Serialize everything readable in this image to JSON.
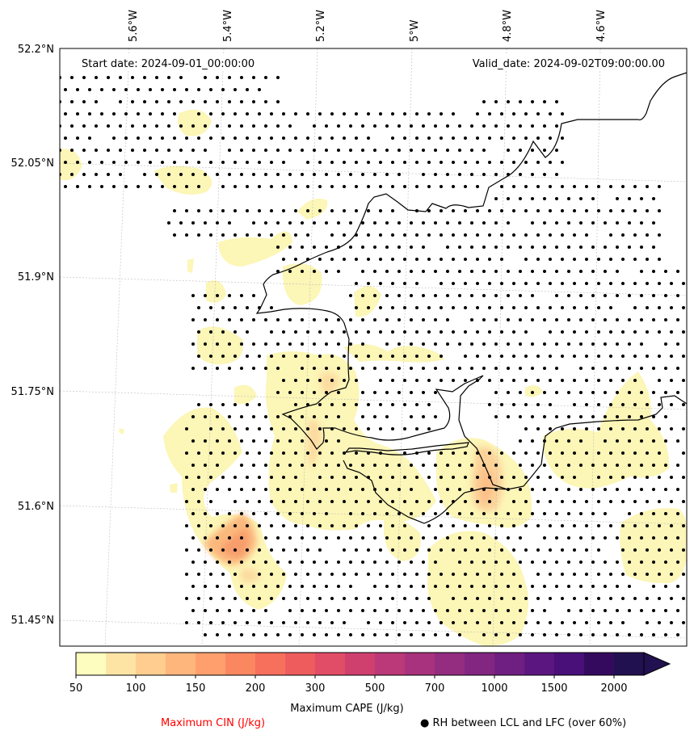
{
  "map": {
    "start_date": "Start date: 2024-09-01_00:00:00",
    "valid_date": "Valid_date: 2024-09-02T09:00:00.00",
    "lon_labels": [
      "5.6°W",
      "5.4°W",
      "5.2°W",
      "5°W",
      "4.8°W",
      "4.6°W"
    ],
    "lat_labels": [
      "52.2°N",
      "52.05°N",
      "51.9°N",
      "51.75°N",
      "51.6°N",
      "51.45°N"
    ],
    "gridlines": true
  },
  "colorbar": {
    "title": "Maximum CAPE (J/kg)",
    "tick_labels": [
      "50",
      "100",
      "150",
      "200",
      "300",
      "500",
      "700",
      "1000",
      "1500",
      "2000"
    ],
    "levels": [
      50,
      75,
      100,
      125,
      150,
      175,
      200,
      250,
      300,
      400,
      500,
      600,
      700,
      850,
      1000,
      1250,
      1500,
      1750,
      2000
    ],
    "colors": [
      "#fcfdbf",
      "#fde4a5",
      "#fecd8f",
      "#feb67c",
      "#fe9f6d",
      "#fb8761",
      "#f7705c",
      "#ee5c5e",
      "#e14d66",
      "#cf406f",
      "#bb3978",
      "#a8327d",
      "#942c80",
      "#822681",
      "#6f1f81",
      "#5c167f",
      "#481078",
      "#340a5f",
      "#221150"
    ],
    "extend": "max"
  },
  "legend": {
    "cin_label": "Maximum CIN (J/kg)",
    "cin_color": "#ff0000",
    "rh_marker": "●",
    "rh_label": "RH between LCL and LFC (over 60%)"
  }
}
